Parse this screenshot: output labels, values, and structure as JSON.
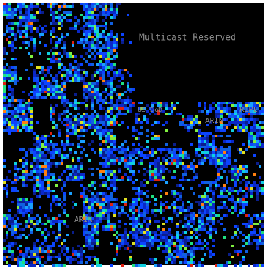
{
  "labels": {
    "multicast": "Multicast Reserved",
    "dod": "US DoD",
    "arin_1": "ARIN",
    "ripe": "RIPE",
    "arin_2": "ARIN"
  }
}
